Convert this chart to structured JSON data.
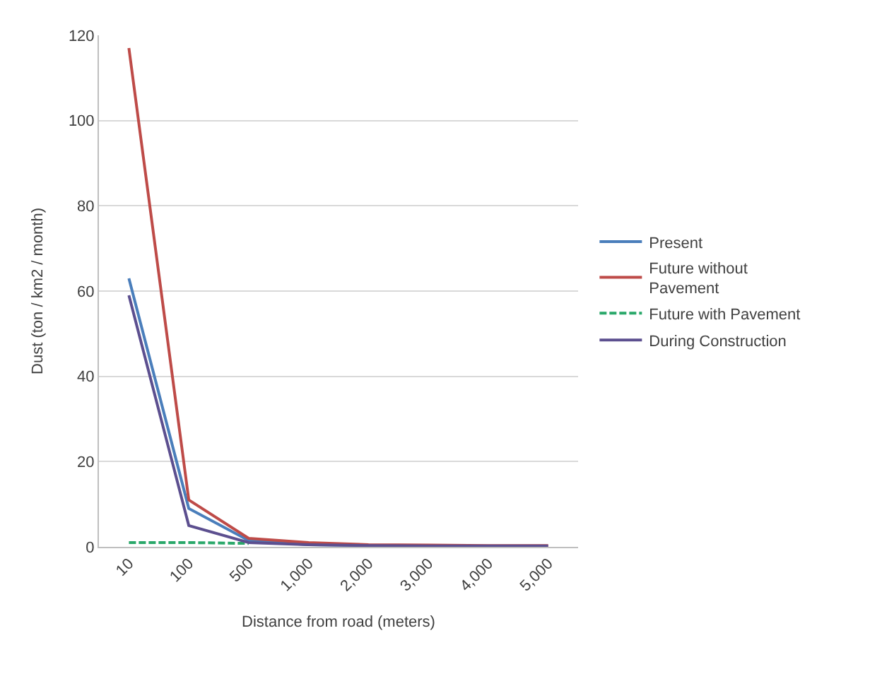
{
  "chart_data": {
    "type": "line",
    "xlabel": "Distance from road (meters)",
    "ylabel": "Dust (ton / km2 / month)",
    "categories": [
      "10",
      "100",
      "500",
      "1,000",
      "2,000",
      "3,000",
      "4,000",
      "5,000"
    ],
    "series": [
      {
        "name": "Present",
        "color": "#4a7ebb",
        "values": [
          63,
          9,
          1.5,
          0.5,
          0.3,
          0.2,
          null,
          null
        ]
      },
      {
        "name": "Future without Pavement",
        "color": "#be4b48",
        "values": [
          117,
          11,
          2,
          1,
          0.5,
          0.4,
          0.3,
          0.3
        ]
      },
      {
        "name": "Future with Pavement",
        "color": "#2aa86a",
        "line_style": "dashed",
        "values": [
          1,
          1,
          0.8,
          null,
          null,
          null,
          null,
          null
        ]
      },
      {
        "name": "During Construction",
        "color": "#5c4f8f",
        "values": [
          59,
          5,
          1,
          0.5,
          0.3,
          0.2,
          0.2,
          0.2
        ]
      }
    ],
    "ylim": [
      0,
      120
    ],
    "yticks": [
      0,
      20,
      40,
      60,
      80,
      100,
      120
    ],
    "grid": "y",
    "legend": "right",
    "marker": "none",
    "line_style": "solid"
  }
}
